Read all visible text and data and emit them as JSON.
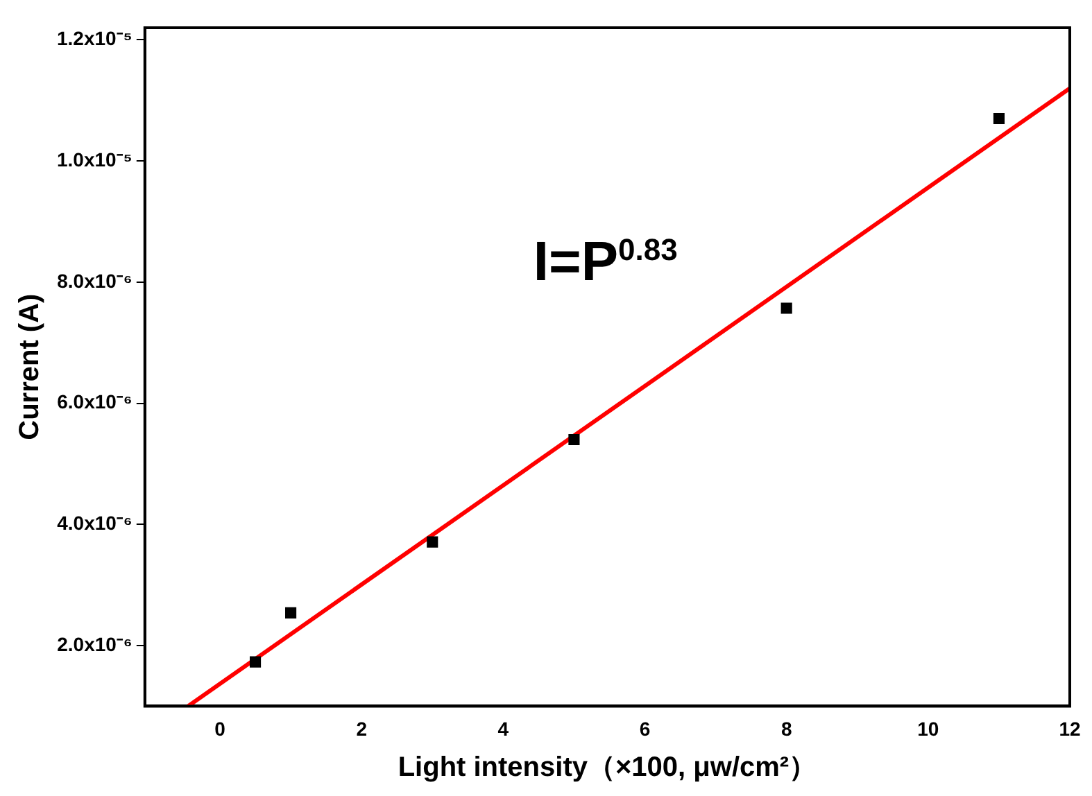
{
  "chart_data": {
    "type": "scatter",
    "xlabel": "Light intensity（×100, μw/cm²）",
    "ylabel": "Current (A)",
    "annotations": [
      "I=P$^{0.83}$"
    ],
    "series": [
      {
        "type": "scatter",
        "color": "#000000",
        "marker": "square",
        "x": [
          0.5,
          1,
          3,
          5,
          8,
          11
        ],
        "values": [
          1.73e-06,
          2.54e-06,
          3.71e-06,
          5.4e-06,
          7.57e-06,
          1.07e-05
        ]
      },
      {
        "type": "line",
        "color": "#ff0000",
        "marker": "none",
        "x": [
          -0.45,
          12
        ],
        "values": [
          1e-06,
          1.12e-05
        ]
      }
    ],
    "xlim": [
      -1.06,
      12
    ],
    "xticks": [
      0,
      2,
      4,
      6,
      8,
      10,
      12
    ],
    "ylim": [
      1e-06,
      1.22e-05
    ],
    "yticks": [
      {
        "value": 2e-06,
        "label": "2.0x10⁻⁶"
      },
      {
        "value": 4e-06,
        "label": "4.0x10⁻⁶"
      },
      {
        "value": 6e-06,
        "label": "6.0x10⁻⁶"
      },
      {
        "value": 8e-06,
        "label": "8.0x10⁻⁶"
      },
      {
        "value": 1e-05,
        "label": "1.0x10⁻⁵"
      },
      {
        "value": 1.2e-05,
        "label": "1.2x10⁻⁵"
      }
    ],
    "grid": false,
    "legend": false
  }
}
